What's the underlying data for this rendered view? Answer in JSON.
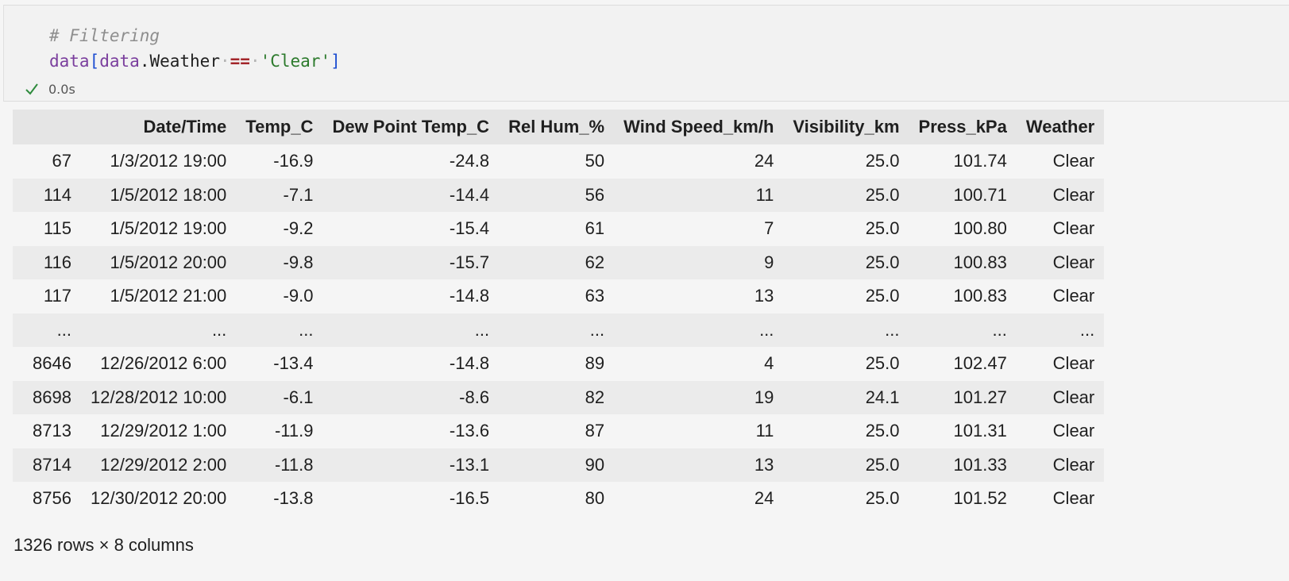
{
  "code": {
    "comment": "# Filtering",
    "line2": {
      "var1": "data",
      "open_bracket": "[",
      "var2": "data",
      "dot": ".",
      "attr": "Weather",
      "op": "==",
      "str": "'Clear'",
      "close_bracket": "]"
    }
  },
  "status": {
    "icon": "check-icon",
    "time": "0.0s",
    "color": "#2e8b3d"
  },
  "table": {
    "columns": [
      "",
      "Date/Time",
      "Temp_C",
      "Dew Point Temp_C",
      "Rel Hum_%",
      "Wind Speed_km/h",
      "Visibility_km",
      "Press_kPa",
      "Weather"
    ],
    "rows": [
      [
        "67",
        "1/3/2012 19:00",
        "-16.9",
        "-24.8",
        "50",
        "24",
        "25.0",
        "101.74",
        "Clear"
      ],
      [
        "114",
        "1/5/2012 18:00",
        "-7.1",
        "-14.4",
        "56",
        "11",
        "25.0",
        "100.71",
        "Clear"
      ],
      [
        "115",
        "1/5/2012 19:00",
        "-9.2",
        "-15.4",
        "61",
        "7",
        "25.0",
        "100.80",
        "Clear"
      ],
      [
        "116",
        "1/5/2012 20:00",
        "-9.8",
        "-15.7",
        "62",
        "9",
        "25.0",
        "100.83",
        "Clear"
      ],
      [
        "117",
        "1/5/2012 21:00",
        "-9.0",
        "-14.8",
        "63",
        "13",
        "25.0",
        "100.83",
        "Clear"
      ],
      [
        "...",
        "...",
        "...",
        "...",
        "...",
        "...",
        "...",
        "...",
        "..."
      ],
      [
        "8646",
        "12/26/2012 6:00",
        "-13.4",
        "-14.8",
        "89",
        "4",
        "25.0",
        "102.47",
        "Clear"
      ],
      [
        "8698",
        "12/28/2012 10:00",
        "-6.1",
        "-8.6",
        "82",
        "19",
        "24.1",
        "101.27",
        "Clear"
      ],
      [
        "8713",
        "12/29/2012 1:00",
        "-11.9",
        "-13.6",
        "87",
        "11",
        "25.0",
        "101.31",
        "Clear"
      ],
      [
        "8714",
        "12/29/2012 2:00",
        "-11.8",
        "-13.1",
        "90",
        "13",
        "25.0",
        "101.33",
        "Clear"
      ],
      [
        "8756",
        "12/30/2012 20:00",
        "-13.8",
        "-16.5",
        "80",
        "24",
        "25.0",
        "101.52",
        "Clear"
      ]
    ]
  },
  "summary": "1326 rows × 8 columns"
}
